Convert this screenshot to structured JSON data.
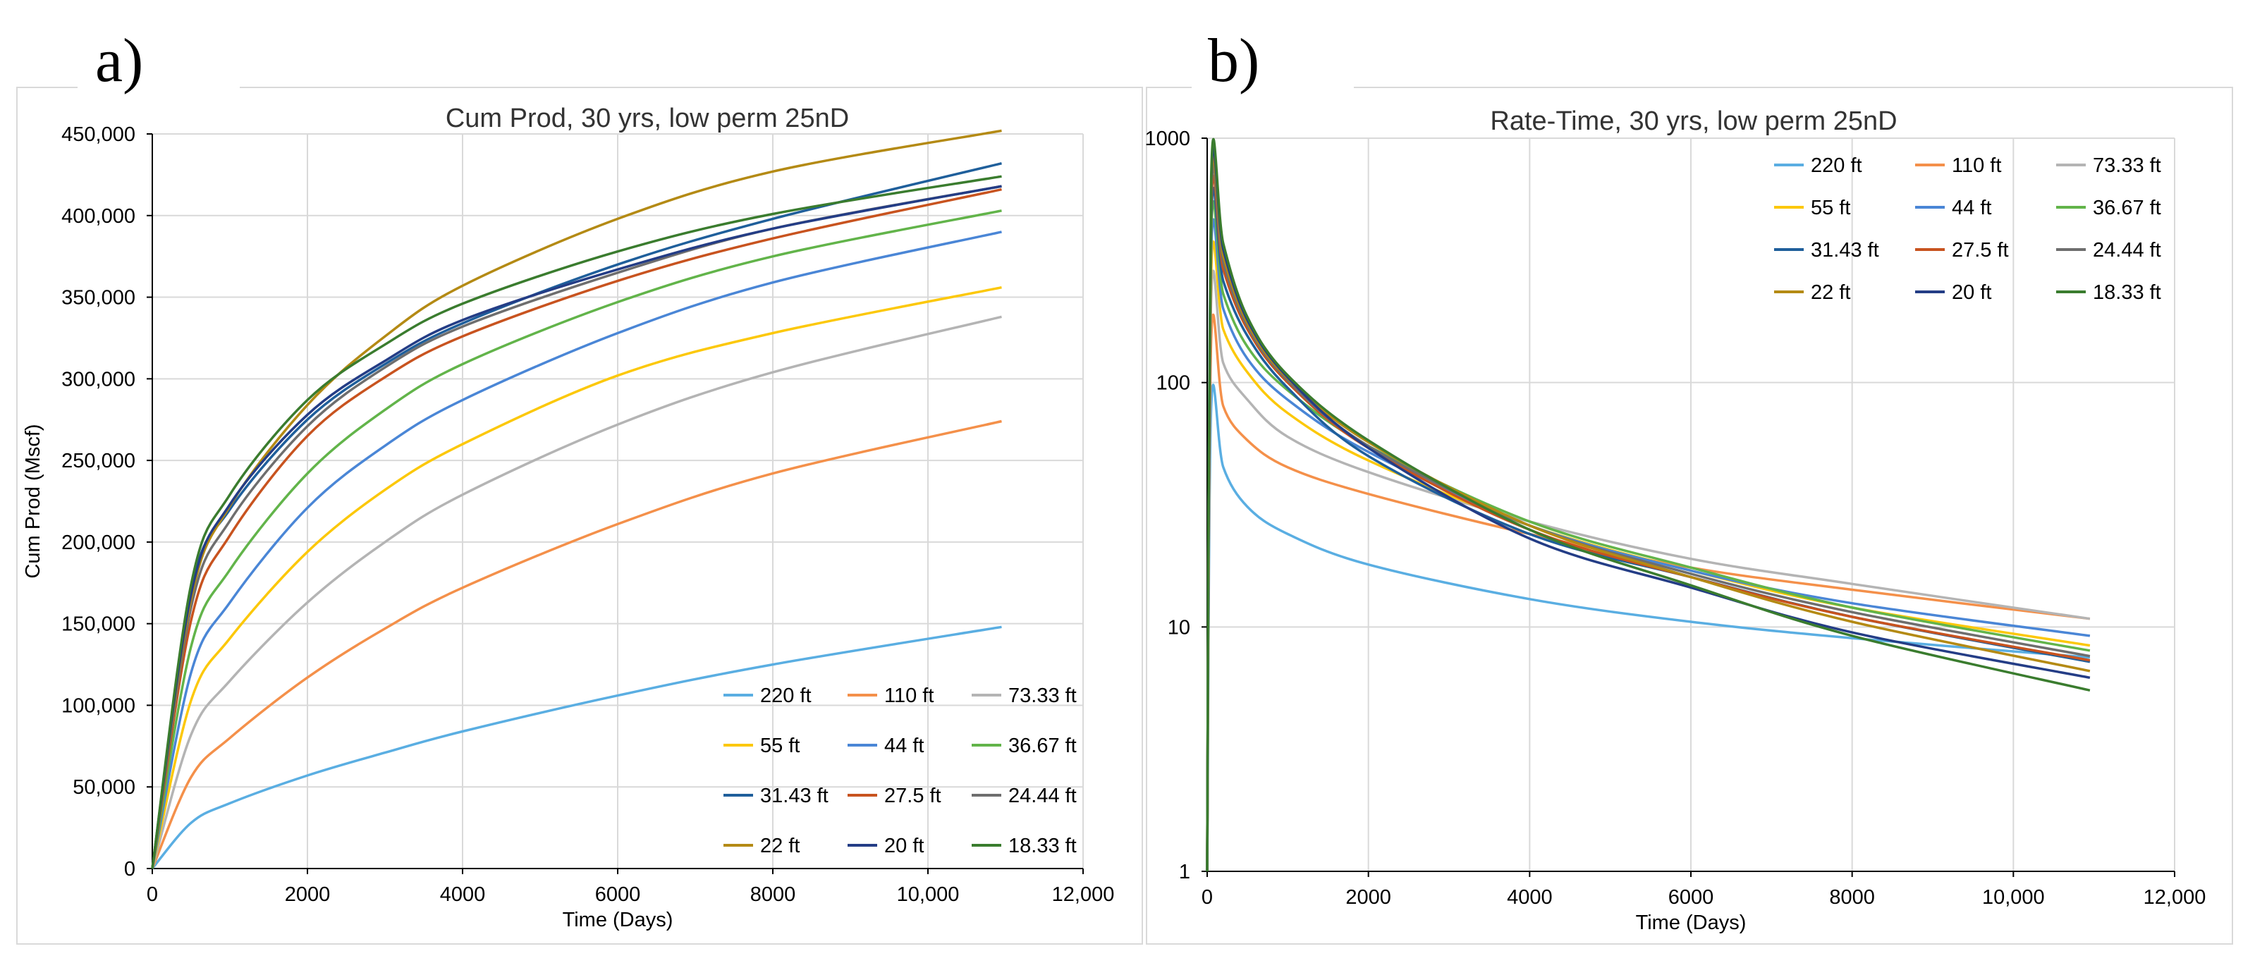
{
  "panel_labels": [
    "a)",
    "b)"
  ],
  "series_meta": [
    {
      "name": "220 ft",
      "color": "#5aaee2"
    },
    {
      "name": "110 ft",
      "color": "#f4904a"
    },
    {
      "name": "73.33 ft",
      "color": "#b4b4b4"
    },
    {
      "name": "55 ft",
      "color": "#fcc80a"
    },
    {
      "name": "44 ft",
      "color": "#4a86d6"
    },
    {
      "name": "36.67 ft",
      "color": "#62b44a"
    },
    {
      "name": "31.43 ft",
      "color": "#1f5f9b"
    },
    {
      "name": "27.5 ft",
      "color": "#c8531f"
    },
    {
      "name": "24.44 ft",
      "color": "#6e6e6e"
    },
    {
      "name": "22 ft",
      "color": "#b48a14"
    },
    {
      "name": "20 ft",
      "color": "#243d86"
    },
    {
      "name": "18.33 ft",
      "color": "#3a7c2e"
    }
  ],
  "chart_data": [
    {
      "type": "line",
      "title": "Cum Prod, 30 yrs, low perm 25nD",
      "xlabel": "Time (Days)",
      "ylabel": "Cum Prod (Mscf)",
      "xlim": [
        0,
        12000
      ],
      "ylim": [
        0,
        450000
      ],
      "xticks": [
        0,
        2000,
        4000,
        6000,
        8000,
        10000,
        12000
      ],
      "xtick_labels": [
        "0",
        "2000",
        "4000",
        "6000",
        "8000",
        "10,000",
        "12,000"
      ],
      "yticks": [
        0,
        50000,
        100000,
        150000,
        200000,
        250000,
        300000,
        350000,
        400000,
        450000
      ],
      "ytick_labels": [
        "0",
        "50,000",
        "100,000",
        "150,000",
        "200,000",
        "250,000",
        "300,000",
        "350,000",
        "400,000",
        "450,000"
      ],
      "grid": true,
      "legend": "bottom-right",
      "x": [
        0,
        500,
        1000,
        2000,
        3000,
        4000,
        6000,
        8000,
        10950
      ],
      "series": [
        {
          "name": "220 ft",
          "values": [
            0,
            28000,
            40000,
            57000,
            71000,
            84000,
            106000,
            125000,
            148000
          ]
        },
        {
          "name": "110 ft",
          "values": [
            0,
            56000,
            80000,
            117000,
            147000,
            172000,
            211000,
            242000,
            274000
          ]
        },
        {
          "name": "73.33 ft",
          "values": [
            0,
            82000,
            115000,
            163000,
            200000,
            229000,
            272000,
            304000,
            338000
          ]
        },
        {
          "name": "55 ft",
          "values": [
            0,
            103000,
            141000,
            194000,
            232000,
            260000,
            302000,
            328000,
            356000
          ]
        },
        {
          "name": "44 ft",
          "values": [
            0,
            120000,
            163000,
            221000,
            259000,
            287000,
            328000,
            359000,
            390000
          ]
        },
        {
          "name": "36.67 ft",
          "values": [
            0,
            136000,
            183000,
            242000,
            281000,
            309000,
            347000,
            375000,
            403000
          ]
        },
        {
          "name": "31.43 ft",
          "values": [
            0,
            170000,
            220000,
            275000,
            309000,
            334000,
            370000,
            398000,
            432000
          ]
        },
        {
          "name": "27.5 ft",
          "values": [
            0,
            152000,
            204000,
            265000,
            301000,
            326000,
            360000,
            386000,
            416000
          ]
        },
        {
          "name": "24.44 ft",
          "values": [
            0,
            160000,
            213000,
            271000,
            307000,
            332000,
            365000,
            392000,
            418000
          ]
        },
        {
          "name": "22 ft",
          "values": [
            0,
            165000,
            222000,
            284000,
            326000,
            357000,
            398000,
            427000,
            452000
          ]
        },
        {
          "name": "20 ft",
          "values": [
            0,
            168000,
            223000,
            278000,
            311000,
            336000,
            367000,
            392000,
            418000
          ]
        },
        {
          "name": "18.33 ft",
          "values": [
            0,
            174000,
            229000,
            287000,
            321000,
            346000,
            378000,
            401000,
            424000
          ]
        }
      ]
    },
    {
      "type": "line",
      "title": "Rate-Time, 30 yrs, low perm 25nD",
      "xlabel": "Time (Days)",
      "ylabel": "",
      "yscale": "log",
      "xlim": [
        0,
        12000
      ],
      "ylim": [
        1,
        1000
      ],
      "xticks": [
        0,
        2000,
        4000,
        6000,
        8000,
        10000,
        12000
      ],
      "xtick_labels": [
        "0",
        "2000",
        "4000",
        "6000",
        "8000",
        "10,000",
        "12,000"
      ],
      "yticks": [
        1,
        10,
        100,
        1000
      ],
      "ytick_labels": [
        "1",
        "10",
        "100",
        "1000"
      ],
      "grid": true,
      "legend": "top-right",
      "x": [
        0,
        50,
        200,
        500,
        1000,
        2000,
        4000,
        6000,
        8000,
        10950
      ],
      "series": [
        {
          "name": "220 ft",
          "values": [
            1,
            80,
            45,
            31,
            24,
            18,
            13,
            10.5,
            9,
            7.5
          ]
        },
        {
          "name": "110 ft",
          "values": [
            1,
            150,
            80,
            58,
            45,
            35,
            24,
            17.5,
            14.2,
            10.8
          ]
        },
        {
          "name": "73.33 ft",
          "values": [
            1,
            220,
            120,
            85,
            60,
            43,
            27,
            19,
            15,
            10.8
          ]
        },
        {
          "name": "55 ft",
          "values": [
            1,
            280,
            165,
            110,
            75,
            48,
            26,
            17,
            12,
            8.4
          ]
        },
        {
          "name": "44 ft",
          "values": [
            1,
            340,
            200,
            125,
            85,
            52,
            26,
            17,
            12.5,
            9.2
          ]
        },
        {
          "name": "36.67 ft",
          "values": [
            1,
            400,
            230,
            140,
            93,
            55,
            27,
            17.5,
            12,
            8
          ]
        },
        {
          "name": "31.43 ft",
          "values": [
            1,
            450,
            260,
            155,
            95,
            50,
            24,
            16,
            11,
            7.2
          ]
        },
        {
          "name": "27.5 ft",
          "values": [
            1,
            500,
            290,
            165,
            100,
            54,
            25,
            16,
            11,
            7.3
          ]
        },
        {
          "name": "24.44 ft",
          "values": [
            1,
            550,
            310,
            170,
            102,
            55,
            26,
            16.5,
            11.5,
            7.6
          ]
        },
        {
          "name": "22 ft",
          "values": [
            1,
            600,
            330,
            175,
            104,
            57,
            26,
            16,
            10.5,
            6.6
          ]
        },
        {
          "name": "20 ft",
          "values": [
            1,
            650,
            350,
            180,
            105,
            54,
            23,
            14.5,
            9.5,
            6.2
          ]
        },
        {
          "name": "18.33 ft",
          "values": [
            1,
            700,
            370,
            185,
            107,
            58,
            25,
            14.8,
            9.2,
            5.5
          ]
        }
      ]
    }
  ]
}
